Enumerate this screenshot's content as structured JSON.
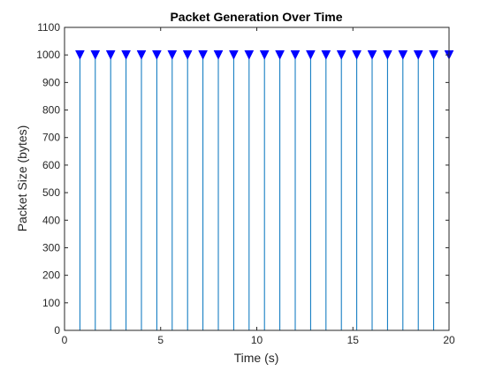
{
  "chart_data": {
    "type": "stem",
    "title": "Packet Generation Over Time",
    "xlabel": "Time (s)",
    "ylabel": "Packet Size (bytes)",
    "xlim": [
      0,
      20
    ],
    "ylim": [
      0,
      1100
    ],
    "xticks": [
      0,
      5,
      10,
      15,
      20
    ],
    "yticks": [
      0,
      100,
      200,
      300,
      400,
      500,
      600,
      700,
      800,
      900,
      1000,
      1100
    ],
    "grid": false,
    "marker": "downward-triangle",
    "colors": {
      "stem": "#0072BD",
      "marker": "#0000FF",
      "axis": "#262626"
    },
    "series": [
      {
        "x": [
          0.8,
          1.6,
          2.4,
          3.2,
          4.0,
          4.8,
          5.6,
          6.4,
          7.2,
          8.0,
          8.8,
          9.6,
          10.4,
          11.2,
          12.0,
          12.8,
          13.6,
          14.4,
          15.2,
          16.0,
          16.8,
          17.6,
          18.4,
          19.2,
          20.0
        ],
        "values": [
          1000,
          1000,
          1000,
          1000,
          1000,
          1000,
          1000,
          1000,
          1000,
          1000,
          1000,
          1000,
          1000,
          1000,
          1000,
          1000,
          1000,
          1000,
          1000,
          1000,
          1000,
          1000,
          1000,
          1000,
          1000
        ]
      }
    ]
  }
}
